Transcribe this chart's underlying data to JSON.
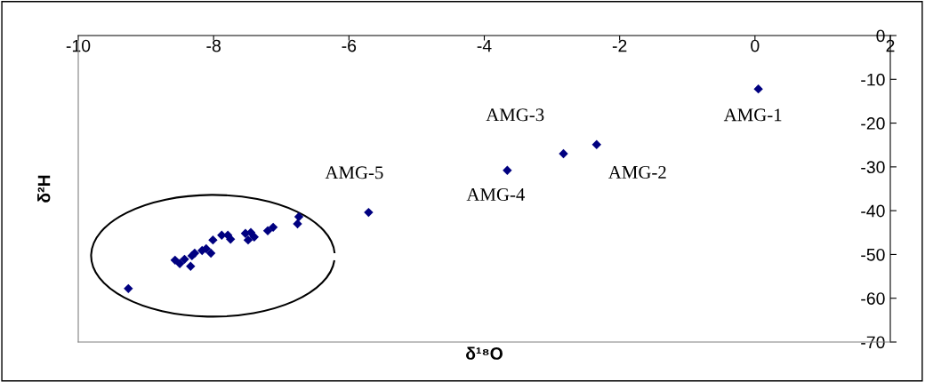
{
  "chart_data": {
    "type": "scatter",
    "xlabel": "δ¹⁸O",
    "ylabel": "δ²H",
    "x": [
      0.05,
      -2.34,
      -2.83,
      -3.66,
      -5.71,
      -9.26,
      -8.57,
      -8.5,
      -8.43,
      -8.34,
      -8.32,
      -8.28,
      -8.17,
      -8.11,
      -8.04,
      -8.01,
      -7.88,
      -7.75,
      -7.79,
      -7.53,
      -7.49,
      -7.45,
      -7.4,
      -7.2,
      -7.12,
      -6.76,
      -6.74
    ],
    "series": [
      {
        "color": "#000080",
        "values": [
          -12.2,
          -24.9,
          -27.0,
          -30.8,
          -40.4,
          -57.8,
          -51.3,
          -52.1,
          -51.1,
          -52.7,
          -50.3,
          -49.7,
          -49.1,
          -48.7,
          -49.7,
          -46.7,
          -45.6,
          -46.5,
          -45.6,
          -45.2,
          -46.7,
          -45.0,
          -46.0,
          -44.6,
          -43.8,
          -43.0,
          -41.4
        ]
      }
    ],
    "xlim": [
      -10,
      2
    ],
    "xticks": [
      -10,
      -8,
      -6,
      -4,
      -2,
      0,
      2
    ],
    "ylim": [
      -70,
      0
    ],
    "yticks": [
      0,
      -10,
      -20,
      -30,
      -40,
      -50,
      -60,
      -70
    ],
    "marker": "diamond",
    "grid": false,
    "annotations": [
      {
        "text": "AMG-1",
        "x": 0.05,
        "y": -12.2
      },
      {
        "text": "AMG-2",
        "x": -2.34,
        "y": -24.9
      },
      "AMG-3",
      {
        "text": "AMG-4",
        "x": -3.66,
        "y": -30.8
      },
      {
        "text": "AMG-5",
        "x": -5.71,
        "y": -40.4
      }
    ]
  }
}
